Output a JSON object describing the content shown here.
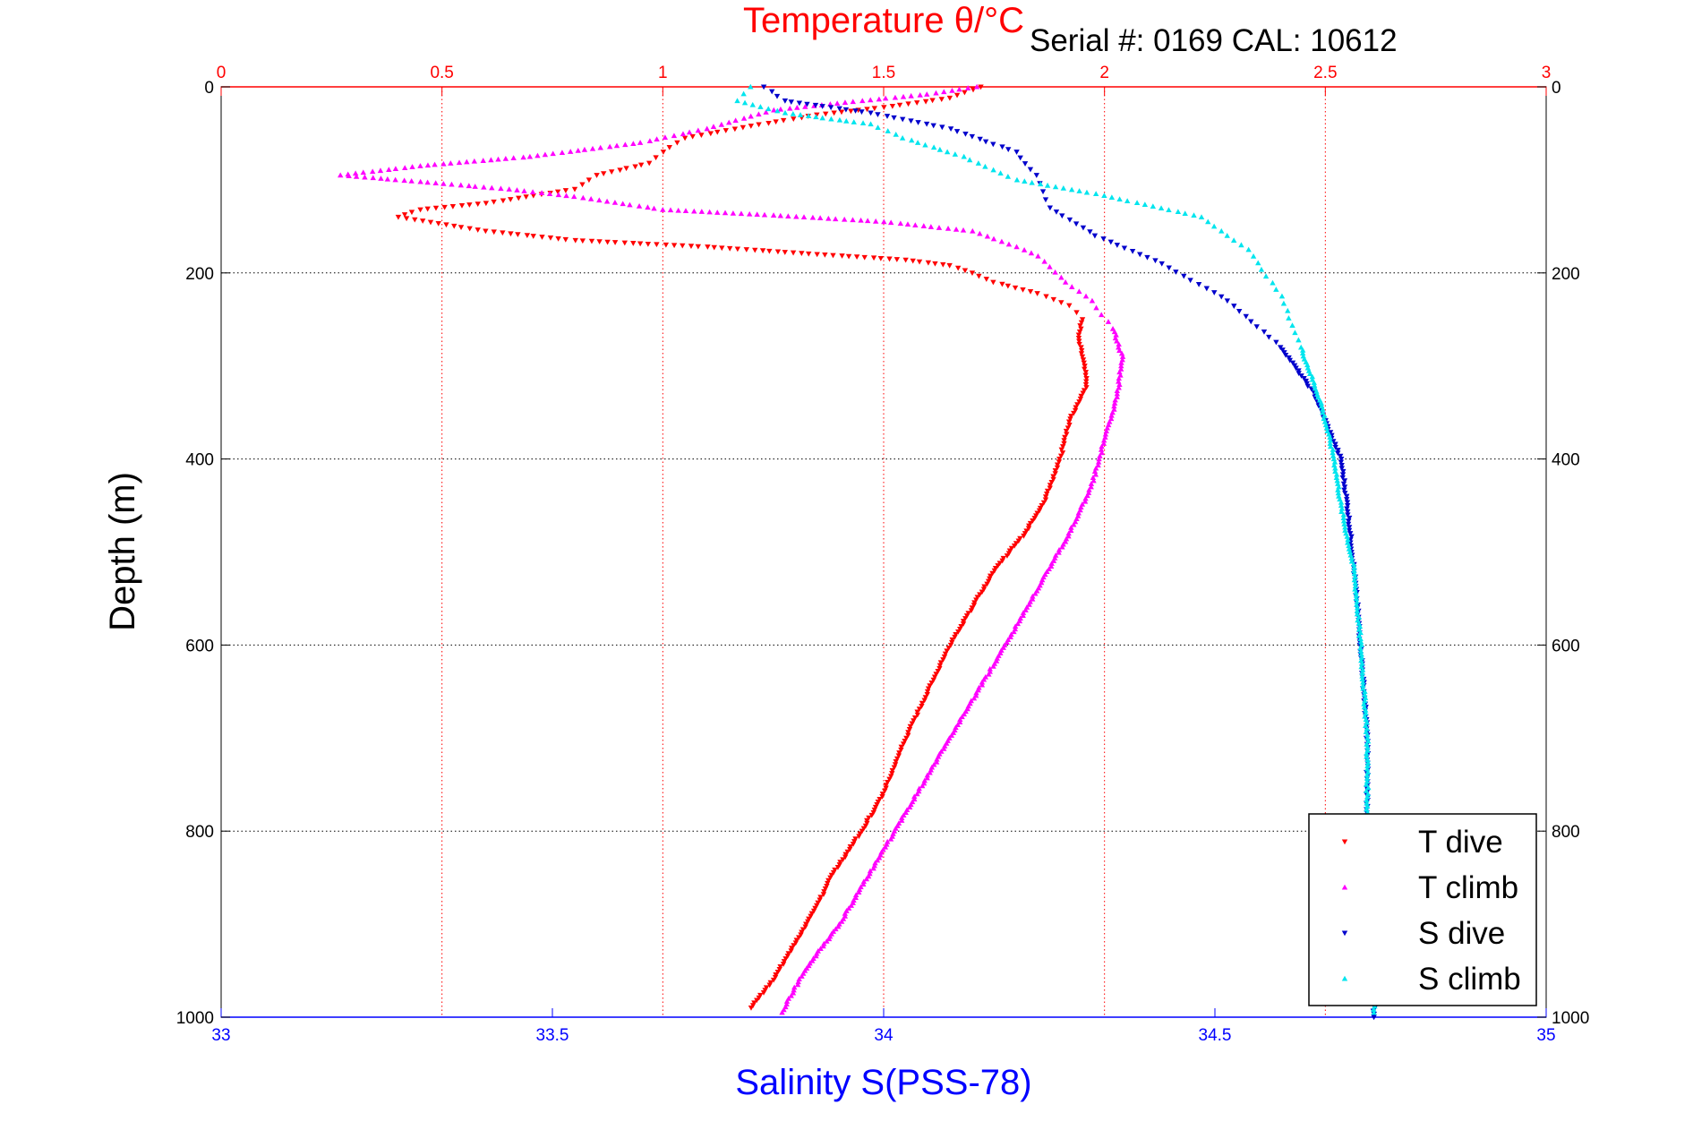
{
  "colors": {
    "t_dive": "#ff0000",
    "t_climb": "#ff00ff",
    "s_dive": "#0000cc",
    "s_climb": "#00e5ee",
    "temp_axis": "#ff0000",
    "sal_axis": "#0000ff",
    "depth_grid": "#000000"
  },
  "chart_data": {
    "type": "scatter",
    "title": "Temperature θ/°C",
    "serial_text": "Serial #: 0169 CAL: 10612",
    "ylabel": "Depth (m)",
    "xlabel": "Salinity S(PSS-78)",
    "ylim": [
      0,
      1000
    ],
    "y_reversed": true,
    "temperature_axis": {
      "position": "top",
      "range": [
        0,
        3
      ],
      "ticks": [
        "0",
        "0.5",
        "1",
        "1.5",
        "2",
        "2.5",
        "3"
      ]
    },
    "salinity_axis": {
      "position": "bottom",
      "range": [
        33,
        35
      ],
      "ticks": [
        "33",
        "33.5",
        "34",
        "34.5",
        "35"
      ]
    },
    "depth_ticks": [
      "0",
      "200",
      "400",
      "600",
      "800",
      "1000"
    ],
    "grid": true,
    "legend": {
      "position": "bottom-right",
      "entries": [
        "T dive",
        "T climb",
        "S dive",
        "S climb"
      ]
    },
    "series": [
      {
        "name": "T dive",
        "axis": "temperature",
        "marker": "triangle-down",
        "points": [
          [
            1.72,
            0
          ],
          [
            1.65,
            12
          ],
          [
            1.5,
            22
          ],
          [
            1.35,
            30
          ],
          [
            1.2,
            42
          ],
          [
            1.05,
            55
          ],
          [
            1.0,
            70
          ],
          [
            0.97,
            82
          ],
          [
            0.85,
            95
          ],
          [
            0.8,
            110
          ],
          [
            0.6,
            125
          ],
          [
            0.45,
            132
          ],
          [
            0.4,
            140
          ],
          [
            0.6,
            155
          ],
          [
            0.8,
            165
          ],
          [
            1.1,
            172
          ],
          [
            1.35,
            180
          ],
          [
            1.55,
            186
          ],
          [
            1.65,
            192
          ],
          [
            1.7,
            200
          ],
          [
            1.75,
            210
          ],
          [
            1.85,
            222
          ],
          [
            1.92,
            235
          ],
          [
            1.95,
            250
          ],
          [
            1.94,
            270
          ],
          [
            1.95,
            290
          ],
          [
            1.96,
            320
          ],
          [
            1.92,
            360
          ],
          [
            1.9,
            400
          ],
          [
            1.86,
            450
          ],
          [
            1.82,
            480
          ],
          [
            1.75,
            520
          ],
          [
            1.7,
            560
          ],
          [
            1.65,
            600
          ],
          [
            1.6,
            650
          ],
          [
            1.55,
            700
          ],
          [
            1.5,
            760
          ],
          [
            1.45,
            800
          ],
          [
            1.38,
            850
          ],
          [
            1.35,
            880
          ],
          [
            1.3,
            920
          ],
          [
            1.25,
            960
          ],
          [
            1.2,
            990
          ]
        ]
      },
      {
        "name": "T climb",
        "axis": "temperature",
        "marker": "triangle-up",
        "points": [
          [
            1.71,
            0
          ],
          [
            1.6,
            8
          ],
          [
            1.45,
            15
          ],
          [
            1.25,
            25
          ],
          [
            1.1,
            45
          ],
          [
            0.95,
            60
          ],
          [
            0.7,
            75
          ],
          [
            0.45,
            85
          ],
          [
            0.27,
            95
          ],
          [
            0.45,
            102
          ],
          [
            0.65,
            110
          ],
          [
            0.8,
            118
          ],
          [
            1.0,
            132
          ],
          [
            1.25,
            138
          ],
          [
            1.5,
            145
          ],
          [
            1.7,
            155
          ],
          [
            1.8,
            172
          ],
          [
            1.85,
            182
          ],
          [
            1.9,
            205
          ],
          [
            1.97,
            230
          ],
          [
            2.02,
            260
          ],
          [
            2.04,
            290
          ],
          [
            2.03,
            330
          ],
          [
            2.0,
            380
          ],
          [
            1.97,
            430
          ],
          [
            1.92,
            480
          ],
          [
            1.86,
            530
          ],
          [
            1.8,
            580
          ],
          [
            1.75,
            620
          ],
          [
            1.7,
            660
          ],
          [
            1.65,
            700
          ],
          [
            1.6,
            740
          ],
          [
            1.55,
            780
          ],
          [
            1.5,
            820
          ],
          [
            1.45,
            860
          ],
          [
            1.4,
            900
          ],
          [
            1.32,
            950
          ],
          [
            1.27,
            995
          ]
        ]
      },
      {
        "name": "S dive",
        "axis": "salinity",
        "marker": "triangle-down",
        "points": [
          [
            33.82,
            0
          ],
          [
            33.85,
            15
          ],
          [
            33.98,
            28
          ],
          [
            34.1,
            45
          ],
          [
            34.2,
            70
          ],
          [
            34.23,
            95
          ],
          [
            34.25,
            130
          ],
          [
            34.32,
            160
          ],
          [
            34.42,
            190
          ],
          [
            34.52,
            230
          ],
          [
            34.6,
            280
          ],
          [
            34.65,
            330
          ],
          [
            34.69,
            400
          ],
          [
            34.7,
            450
          ],
          [
            34.71,
            520
          ],
          [
            34.72,
            600
          ],
          [
            34.73,
            700
          ],
          [
            34.73,
            800
          ],
          [
            34.74,
            900
          ],
          [
            34.74,
            1000
          ]
        ]
      },
      {
        "name": "S climb",
        "axis": "salinity",
        "marker": "triangle-up",
        "points": [
          [
            33.8,
            0
          ],
          [
            33.78,
            15
          ],
          [
            33.85,
            28
          ],
          [
            33.98,
            40
          ],
          [
            34.03,
            55
          ],
          [
            34.12,
            75
          ],
          [
            34.2,
            100
          ],
          [
            34.32,
            115
          ],
          [
            34.48,
            140
          ],
          [
            34.55,
            175
          ],
          [
            34.6,
            225
          ],
          [
            34.63,
            280
          ],
          [
            34.66,
            340
          ],
          [
            34.68,
            400
          ],
          [
            34.69,
            450
          ],
          [
            34.71,
            520
          ],
          [
            34.72,
            600
          ],
          [
            34.73,
            700
          ],
          [
            34.73,
            800
          ],
          [
            34.74,
            900
          ],
          [
            34.74,
            995
          ]
        ]
      }
    ]
  }
}
